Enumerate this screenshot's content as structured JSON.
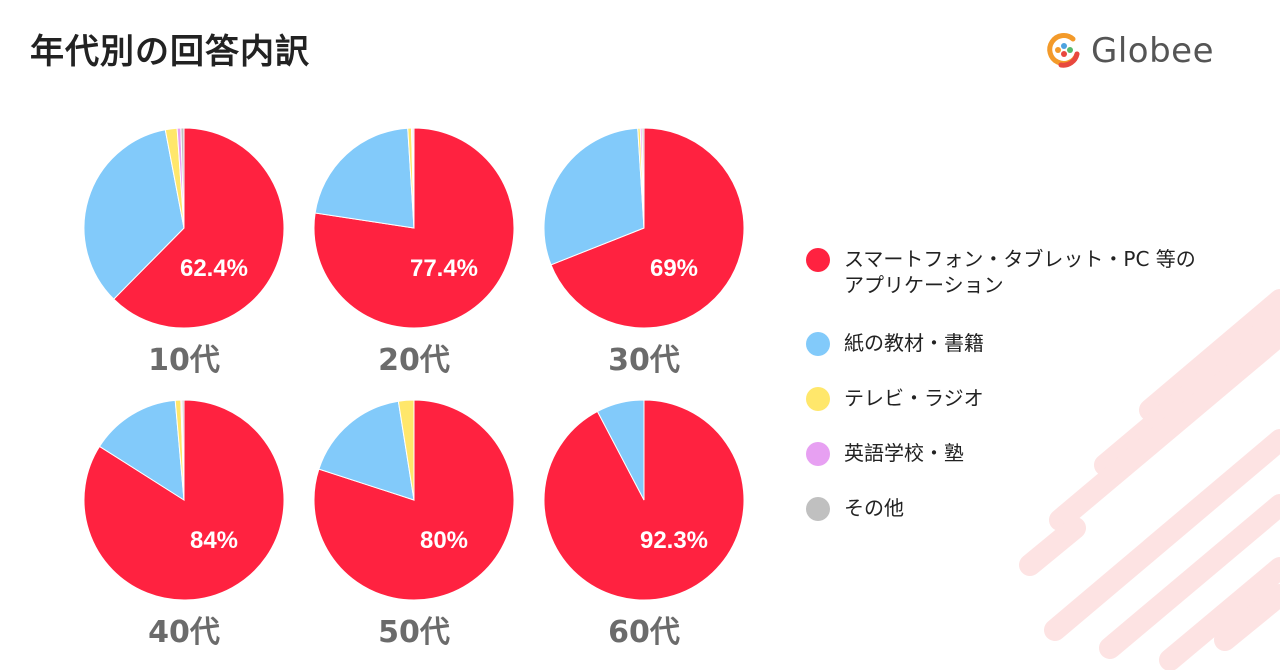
{
  "page": {
    "title": "年代別の回答内訳",
    "brand": "Globee"
  },
  "colors": {
    "smartphone": "#FF2240",
    "paper": "#82CAFA",
    "tv_radio": "#FFE76B",
    "school": "#E7A0F2",
    "other": "#C0C0C0",
    "decoration": "#FDE3E3"
  },
  "icons": {
    "logo": "globee-logo-icon"
  },
  "chart_data": [
    {
      "type": "pie",
      "title": "10代",
      "categories": [
        "スマートフォン・タブレット・PC等のアプリケーション",
        "紙の教材・書籍",
        "テレビ・ラジオ",
        "英語学校・塾",
        "その他"
      ],
      "values": [
        62.4,
        34.6,
        1.9,
        0.6,
        0.5
      ],
      "labels": [
        "62.4%",
        "",
        "",
        "",
        ""
      ]
    },
    {
      "type": "pie",
      "title": "20代",
      "categories": [
        "スマートフォン・タブレット・PC等のアプリケーション",
        "紙の教材・書籍",
        "テレビ・ラジオ",
        "英語学校・塾",
        "その他"
      ],
      "values": [
        77.4,
        21.6,
        0.6,
        0.2,
        0.2
      ],
      "labels": [
        "77.4%",
        "",
        "",
        "",
        ""
      ]
    },
    {
      "type": "pie",
      "title": "30代",
      "categories": [
        "スマートフォン・タブレット・PC等のアプリケーション",
        "紙の教材・書籍",
        "テレビ・ラジオ",
        "英語学校・塾",
        "その他"
      ],
      "values": [
        69,
        30,
        0.4,
        0.3,
        0.3
      ],
      "labels": [
        "69%",
        "",
        "",
        "",
        ""
      ]
    },
    {
      "type": "pie",
      "title": "40代",
      "categories": [
        "スマートフォン・タブレット・PC等のアプリケーション",
        "紙の教材・書籍",
        "テレビ・ラジオ",
        "英語学校・塾",
        "その他"
      ],
      "values": [
        84,
        14.6,
        0.9,
        0.2,
        0.3
      ],
      "labels": [
        "84%",
        "",
        "",
        "",
        ""
      ]
    },
    {
      "type": "pie",
      "title": "50代",
      "categories": [
        "スマートフォン・タブレット・PC等のアプリケーション",
        "紙の教材・書籍",
        "テレビ・ラジオ",
        "英語学校・塾",
        "その他"
      ],
      "values": [
        80,
        17.5,
        2.5,
        0,
        0
      ],
      "labels": [
        "80%",
        "",
        "",
        "",
        ""
      ]
    },
    {
      "type": "pie",
      "title": "60代",
      "categories": [
        "スマートフォン・タブレット・PC等のアプリケーション",
        "紙の教材・書籍",
        "テレビ・ラジオ",
        "英語学校・塾",
        "その他"
      ],
      "values": [
        92.3,
        7.7,
        0,
        0,
        0
      ],
      "labels": [
        "92.3%",
        "",
        "",
        "",
        ""
      ]
    }
  ],
  "legend": {
    "position": "right",
    "items": [
      {
        "label": "スマートフォン・タブレット・PC 等のアプリケーション",
        "color_key": "smartphone"
      },
      {
        "label": "紙の教材・書籍",
        "color_key": "paper"
      },
      {
        "label": "テレビ・ラジオ",
        "color_key": "tv_radio"
      },
      {
        "label": "英語学校・塾",
        "color_key": "school"
      },
      {
        "label": "その他",
        "color_key": "other"
      }
    ]
  }
}
